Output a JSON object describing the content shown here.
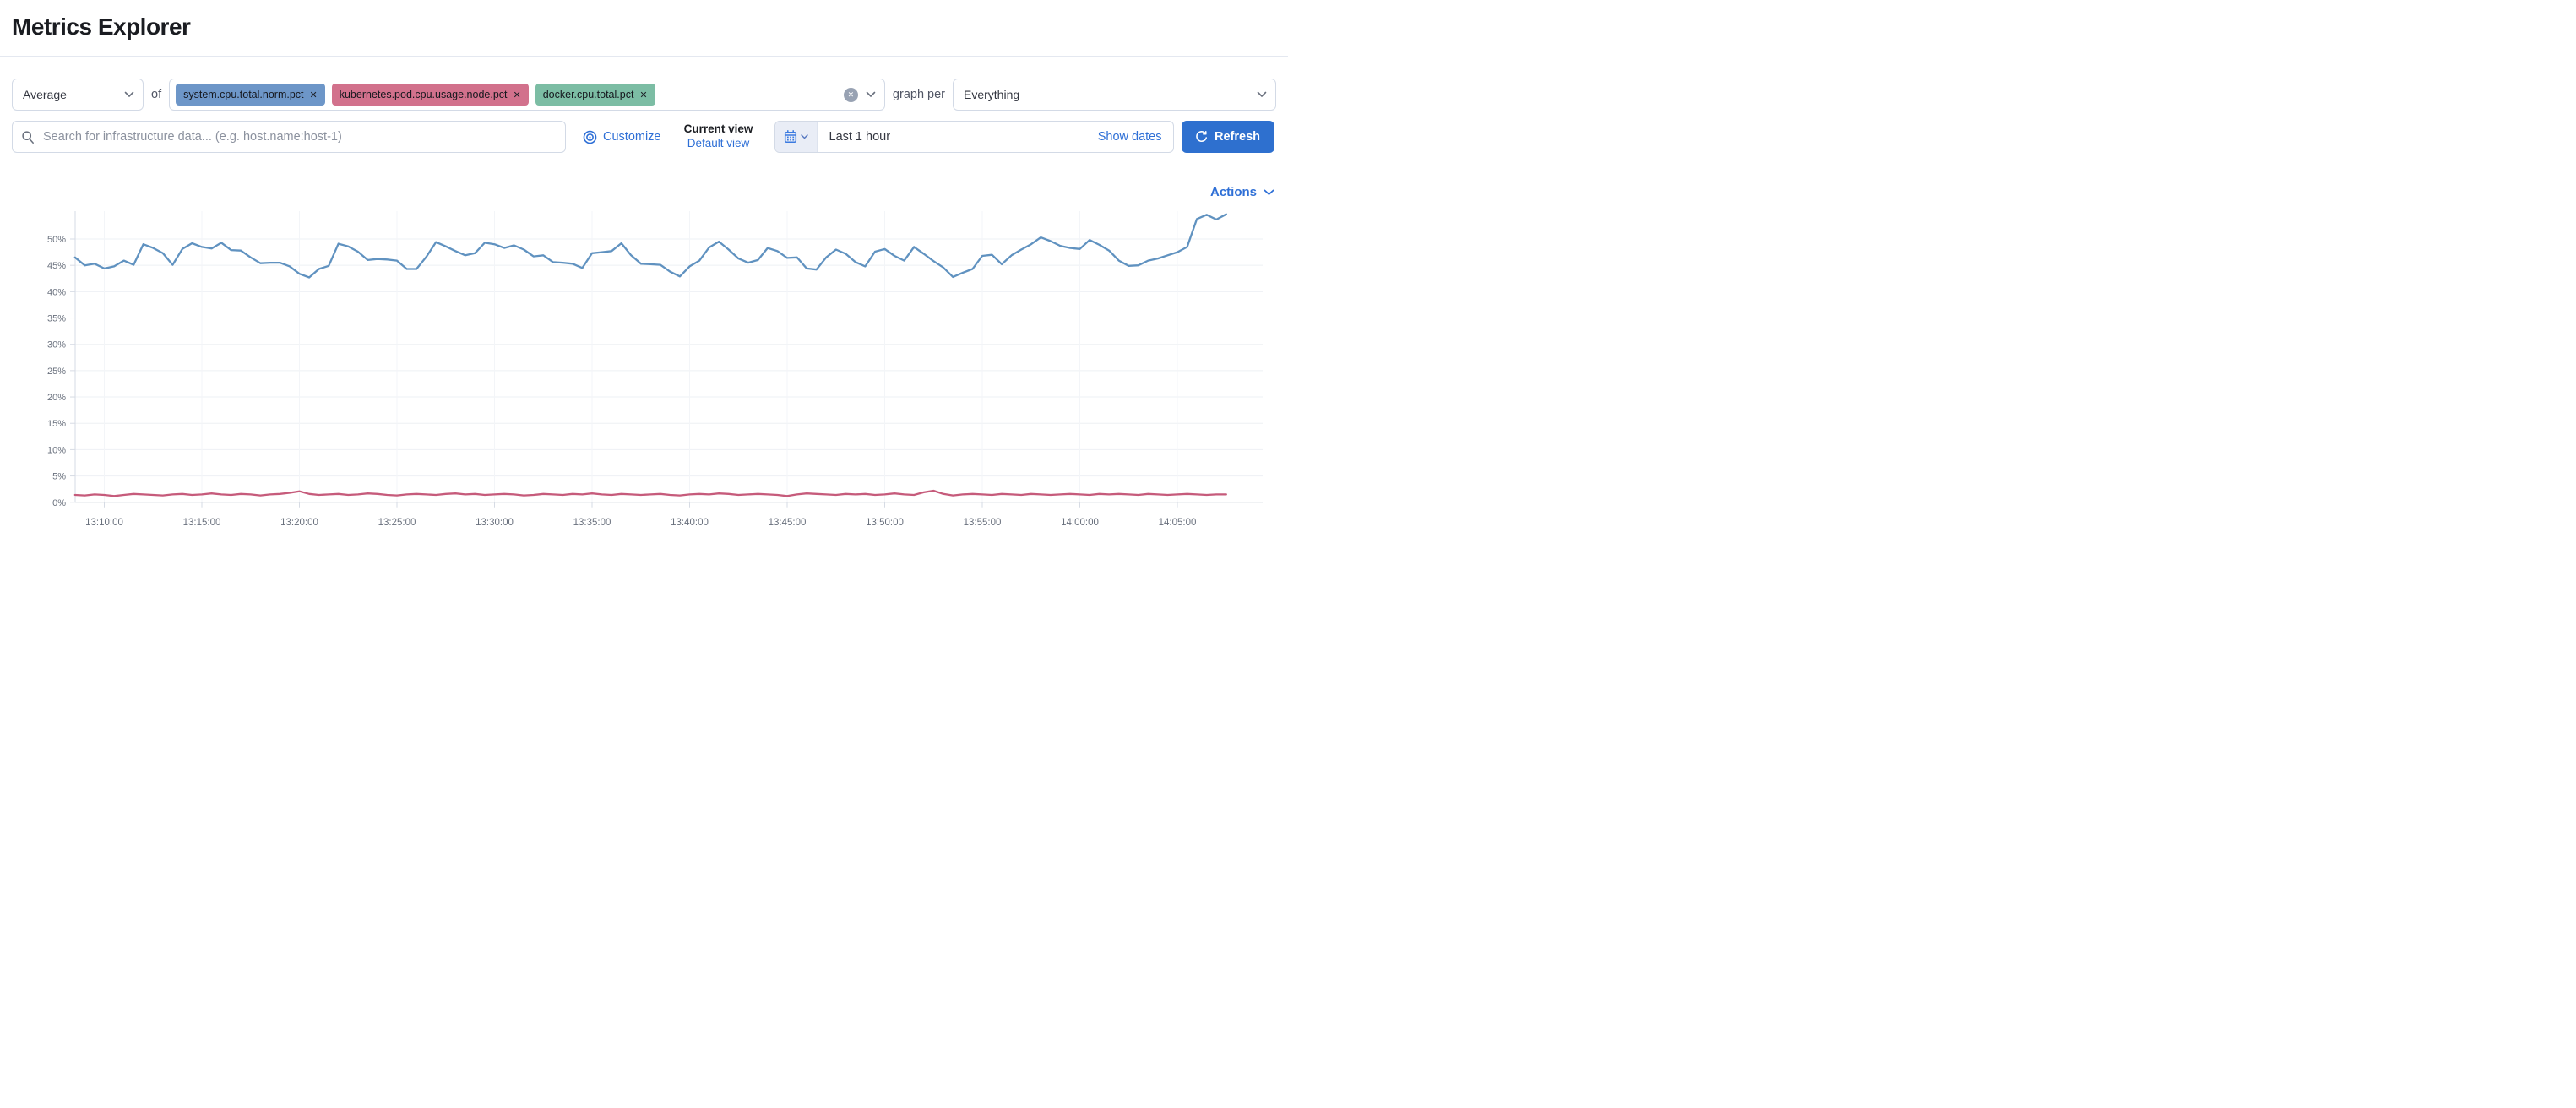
{
  "page": {
    "title": "Metrics Explorer"
  },
  "toolbar": {
    "aggregation": {
      "value": "Average"
    },
    "of_label": "of",
    "metrics": {
      "pills": [
        {
          "label": "system.cpu.total.norm.pct",
          "color": "#6d96c8"
        },
        {
          "label": "kubernetes.pod.cpu.usage.node.pct",
          "color": "#d2718c"
        },
        {
          "label": "docker.cpu.total.pct",
          "color": "#7cbda4"
        }
      ],
      "remove_icon": "✕"
    },
    "graph_per_label": "graph per",
    "group_by": {
      "value": "Everything"
    }
  },
  "search": {
    "placeholder": "Search for infrastructure data... (e.g. host.name:host-1)"
  },
  "view_controls": {
    "customize_label": "Customize",
    "current_view_label": "Current view",
    "default_view_label": "Default view"
  },
  "datepicker": {
    "value": "Last 1 hour",
    "show_dates_label": "Show dates"
  },
  "refresh_label": "Refresh",
  "actions_label": "Actions",
  "chart_data": {
    "type": "line",
    "unit": "%",
    "ylim": [
      0,
      55
    ],
    "grid": true,
    "legend": "none",
    "y_ticks": [
      0,
      5,
      10,
      15,
      20,
      25,
      30,
      35,
      40,
      45,
      50
    ],
    "x_ticks": [
      "13:10:00",
      "13:15:00",
      "13:20:00",
      "13:25:00",
      "13:30:00",
      "13:35:00",
      "13:40:00",
      "13:45:00",
      "13:50:00",
      "13:55:00",
      "14:00:00",
      "14:05:00"
    ],
    "x_tick_interval_min": 5,
    "series": [
      {
        "name": "system.cpu.total.norm.pct",
        "color": "#6092c0",
        "start_offset_min": -1.5,
        "step_min": 0.5,
        "values": [
          46.5,
          45.0,
          45.3,
          44.4,
          44.8,
          45.9,
          45.1,
          49.0,
          48.3,
          47.3,
          45.1,
          48.1,
          49.2,
          48.5,
          48.2,
          49.3,
          47.9,
          47.8,
          46.5,
          45.4,
          45.5,
          45.5,
          44.8,
          43.4,
          42.7,
          44.3,
          44.9,
          49.1,
          48.6,
          47.6,
          46.0,
          46.2,
          46.1,
          45.9,
          44.3,
          44.3,
          46.6,
          49.4,
          48.6,
          47.7,
          46.9,
          47.3,
          49.3,
          49.0,
          48.3,
          48.8,
          48.0,
          46.7,
          46.9,
          45.6,
          45.5,
          45.3,
          44.5,
          47.3,
          47.5,
          47.7,
          49.2,
          46.9,
          45.3,
          45.2,
          45.1,
          43.8,
          42.9,
          44.8,
          45.9,
          48.4,
          49.5,
          48.0,
          46.3,
          45.5,
          46.0,
          48.3,
          47.7,
          46.4,
          46.5,
          44.4,
          44.2,
          46.5,
          48.0,
          47.2,
          45.6,
          44.8,
          47.6,
          48.1,
          46.8,
          45.9,
          48.5,
          47.2,
          45.8,
          44.6,
          42.8,
          43.6,
          44.3,
          46.8,
          47.0,
          45.2,
          46.9,
          48.0,
          49.0,
          50.3,
          49.6,
          48.7,
          48.3,
          48.1,
          49.8,
          48.9,
          47.8,
          45.9,
          44.9,
          45.0,
          45.9,
          46.3,
          46.9,
          47.5,
          48.5,
          53.8,
          54.6,
          53.7,
          54.7
        ]
      },
      {
        "name": "kubernetes.pod.cpu.usage.node.pct",
        "color": "#c65b7b",
        "start_offset_min": -1.5,
        "step_min": 0.5,
        "values": [
          1.4,
          1.3,
          1.5,
          1.4,
          1.2,
          1.4,
          1.6,
          1.5,
          1.4,
          1.3,
          1.5,
          1.6,
          1.4,
          1.5,
          1.7,
          1.5,
          1.4,
          1.6,
          1.5,
          1.3,
          1.5,
          1.6,
          1.8,
          2.1,
          1.6,
          1.4,
          1.5,
          1.6,
          1.4,
          1.5,
          1.7,
          1.6,
          1.4,
          1.3,
          1.5,
          1.6,
          1.5,
          1.4,
          1.6,
          1.7,
          1.5,
          1.6,
          1.4,
          1.5,
          1.6,
          1.5,
          1.3,
          1.4,
          1.6,
          1.5,
          1.4,
          1.6,
          1.5,
          1.7,
          1.5,
          1.4,
          1.6,
          1.5,
          1.4,
          1.5,
          1.6,
          1.4,
          1.3,
          1.5,
          1.6,
          1.5,
          1.7,
          1.6,
          1.4,
          1.5,
          1.6,
          1.5,
          1.4,
          1.2,
          1.5,
          1.7,
          1.6,
          1.5,
          1.4,
          1.6,
          1.5,
          1.6,
          1.4,
          1.5,
          1.7,
          1.5,
          1.4,
          1.9,
          2.2,
          1.6,
          1.3,
          1.5,
          1.6,
          1.5,
          1.4,
          1.6,
          1.5,
          1.4,
          1.6,
          1.5,
          1.4,
          1.5,
          1.6,
          1.5,
          1.4,
          1.6,
          1.5,
          1.6,
          1.5,
          1.4,
          1.6,
          1.5,
          1.4,
          1.5,
          1.6,
          1.5,
          1.4,
          1.5,
          1.5
        ]
      }
    ]
  }
}
